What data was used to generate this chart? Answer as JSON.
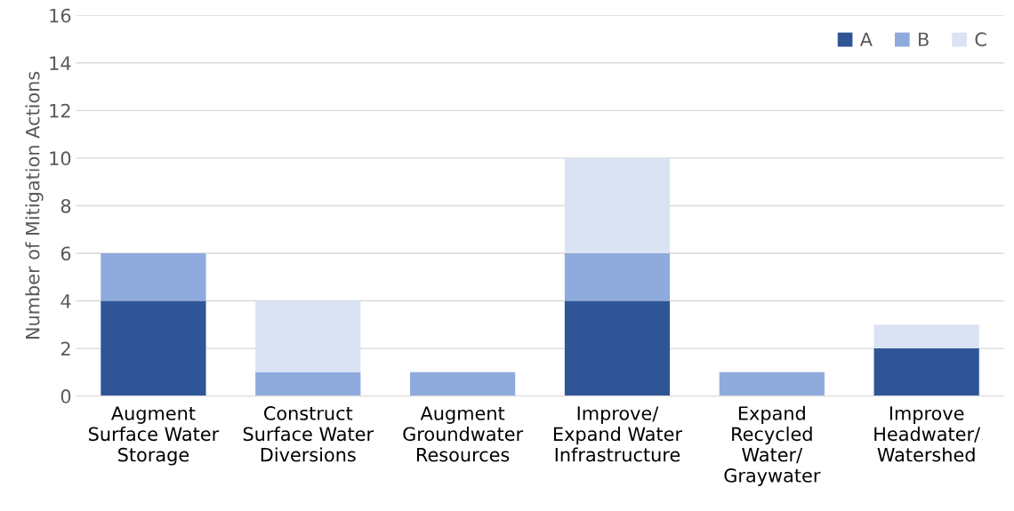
{
  "chart_data": {
    "type": "bar",
    "stacked": true,
    "ylabel": "Number of Mitigation Actions",
    "categories": [
      "Augment\nSurface Water\nStorage",
      "Construct\nSurface Water\nDiversions",
      "Augment\nGroundwater\nResources",
      "Improve/\nExpand Water\nInfrastructure",
      "Expand\nRecycled\nWater/\nGraywater",
      "Improve\nHeadwater/\nWatershed"
    ],
    "series": [
      {
        "name": "A",
        "color": "#2f5597",
        "values": [
          4,
          0,
          0,
          4,
          0,
          2
        ]
      },
      {
        "name": "B",
        "color": "#8faadc",
        "values": [
          2,
          1,
          1,
          2,
          1,
          0
        ]
      },
      {
        "name": "C",
        "color": "#dae3f3",
        "values": [
          0,
          3,
          0,
          4,
          0,
          1
        ]
      }
    ],
    "ylim": [
      0,
      16
    ],
    "yticks": [
      0,
      2,
      4,
      6,
      8,
      10,
      12,
      14,
      16
    ],
    "grid": "y",
    "legend": "top right"
  }
}
